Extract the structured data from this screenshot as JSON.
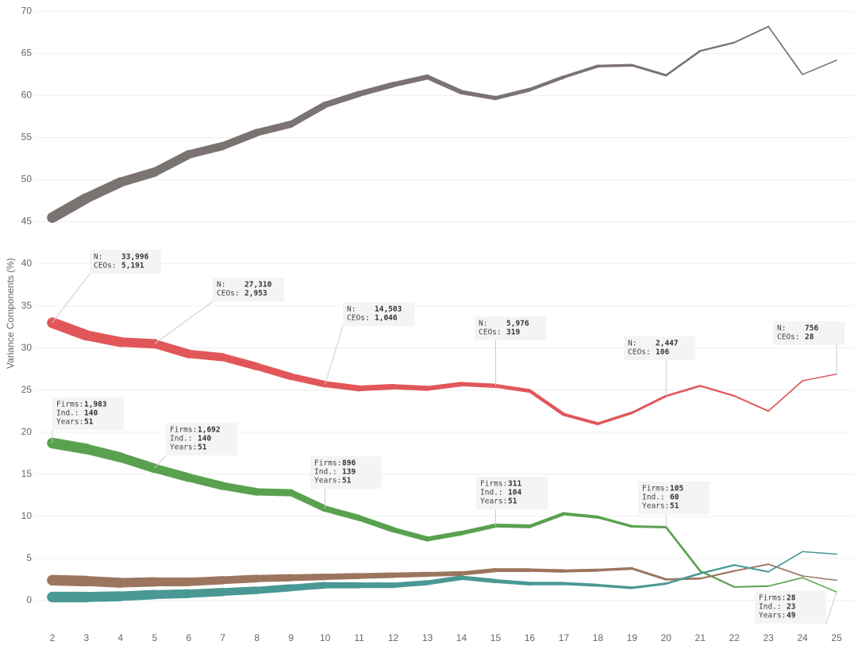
{
  "chart_data": {
    "type": "line",
    "y_label": "Variance Components (%)",
    "x": [
      2,
      3,
      4,
      5,
      6,
      7,
      8,
      9,
      10,
      11,
      12,
      13,
      14,
      15,
      16,
      17,
      18,
      19,
      20,
      21,
      22,
      23,
      24,
      25
    ],
    "xlim": [
      1.49,
      25.51
    ],
    "xticks": [
      2,
      3,
      4,
      5,
      6,
      7,
      8,
      9,
      10,
      11,
      12,
      13,
      14,
      15,
      16,
      17,
      18,
      19,
      20,
      21,
      22,
      23,
      24,
      25
    ],
    "ylim": [
      -3.6,
      70.6
    ],
    "yticks": [
      0,
      5,
      10,
      15,
      20,
      25,
      30,
      35,
      40,
      45,
      50,
      55,
      60,
      65,
      70
    ],
    "grid": true,
    "series": [
      {
        "color": "#7b7272",
        "values": [
          45.5,
          47.8,
          49.7,
          50.9,
          53.0,
          54.0,
          55.6,
          56.6,
          58.9,
          60.2,
          61.3,
          62.2,
          60.4,
          59.7,
          60.7,
          62.2,
          63.5,
          63.6,
          62.4,
          65.3,
          66.3,
          68.2,
          62.5,
          64.2
        ]
      },
      {
        "color": "#e15759",
        "values": [
          33.0,
          31.5,
          30.7,
          30.5,
          29.3,
          28.9,
          27.8,
          26.6,
          25.7,
          25.2,
          25.4,
          25.2,
          25.7,
          25.5,
          24.9,
          22.1,
          21.0,
          22.3,
          24.3,
          25.5,
          24.3,
          22.5,
          26.1,
          26.9
        ]
      },
      {
        "color": "#59a14f",
        "values": [
          18.7,
          18.0,
          17.0,
          15.7,
          14.6,
          13.6,
          12.9,
          12.8,
          10.9,
          9.8,
          8.4,
          7.3,
          8.0,
          8.9,
          8.8,
          10.3,
          9.9,
          8.8,
          8.7,
          3.5,
          1.6,
          1.7,
          2.7,
          1.0
        ]
      },
      {
        "color": "#9c755f",
        "values": [
          2.4,
          2.3,
          2.1,
          2.2,
          2.2,
          2.4,
          2.6,
          2.7,
          2.8,
          2.9,
          3.0,
          3.1,
          3.2,
          3.6,
          3.6,
          3.5,
          3.6,
          3.8,
          2.5,
          2.6,
          3.5,
          4.3,
          2.9,
          2.4
        ]
      },
      {
        "color": "#499894",
        "values": [
          0.4,
          0.4,
          0.5,
          0.7,
          0.8,
          1.0,
          1.2,
          1.5,
          1.8,
          1.8,
          1.8,
          2.1,
          2.7,
          2.3,
          2.0,
          2.0,
          1.8,
          1.5,
          2.0,
          3.2,
          4.2,
          3.4,
          5.8,
          5.5
        ]
      }
    ],
    "annotations": [
      {
        "rows": [
          {
            "label": "N:",
            "value": "33,996"
          },
          {
            "label": "CEOs:",
            "value": "5,191"
          }
        ]
      },
      {
        "rows": [
          {
            "label": "N:",
            "value": "27,310"
          },
          {
            "label": "CEOs:",
            "value": "2,953"
          }
        ]
      },
      {
        "rows": [
          {
            "label": "N:",
            "value": "14,503"
          },
          {
            "label": "CEOs:",
            "value": "1,046"
          }
        ]
      },
      {
        "rows": [
          {
            "label": "N:",
            "value": "5,976"
          },
          {
            "label": "CEOs:",
            "value": "319"
          }
        ]
      },
      {
        "rows": [
          {
            "label": "N:",
            "value": "2,447"
          },
          {
            "label": "CEOs:",
            "value": "106"
          }
        ]
      },
      {
        "rows": [
          {
            "label": "N:",
            "value": "756"
          },
          {
            "label": "CEOs:",
            "value": "28"
          }
        ]
      },
      {
        "rows": [
          {
            "label": "Firms:",
            "value": "1,983"
          },
          {
            "label": "Ind.:",
            "value": "140"
          },
          {
            "label": "Years:",
            "value": "51"
          }
        ]
      },
      {
        "rows": [
          {
            "label": "Firms:",
            "value": "1,692"
          },
          {
            "label": "Ind.:",
            "value": "140"
          },
          {
            "label": "Years:",
            "value": "51"
          }
        ]
      },
      {
        "rows": [
          {
            "label": "Firms:",
            "value": "896"
          },
          {
            "label": "Ind.:",
            "value": "139"
          },
          {
            "label": "Years:",
            "value": "51"
          }
        ]
      },
      {
        "rows": [
          {
            "label": "Firms:",
            "value": "311"
          },
          {
            "label": "Ind.:",
            "value": "104"
          },
          {
            "label": "Years:",
            "value": "51"
          }
        ]
      },
      {
        "rows": [
          {
            "label": "Firms:",
            "value": "105"
          },
          {
            "label": "Ind.:",
            "value": "60"
          },
          {
            "label": "Years:",
            "value": "51"
          }
        ]
      },
      {
        "rows": [
          {
            "label": "Firms:",
            "value": "28"
          },
          {
            "label": "Ind.:",
            "value": "23"
          },
          {
            "label": "Years:",
            "value": "49"
          }
        ]
      }
    ]
  }
}
